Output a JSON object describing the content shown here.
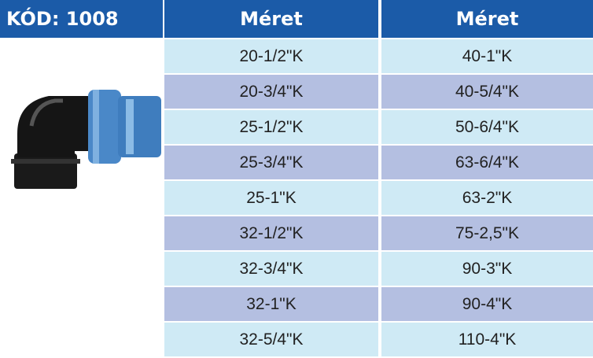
{
  "header": {
    "code": "KÓD: 1008"
  },
  "table": {
    "headers": [
      "Méret",
      "Méret"
    ],
    "rows": [
      [
        "20-1/2\"K",
        "40-1\"K"
      ],
      [
        "20-3/4\"K",
        "40-5/4\"K"
      ],
      [
        "25-1/2\"K",
        "50-6/4\"K"
      ],
      [
        "25-3/4\"K",
        "63-6/4\"K"
      ],
      [
        "25-1\"K",
        "63-2\"K"
      ],
      [
        "32-1/2\"K",
        "75-2,5\"K"
      ],
      [
        "32-3/4\"K",
        "90-3\"K"
      ],
      [
        "32-1\"K",
        "90-4\"K"
      ],
      [
        "32-5/4\"K",
        "110-4\"K"
      ]
    ]
  }
}
